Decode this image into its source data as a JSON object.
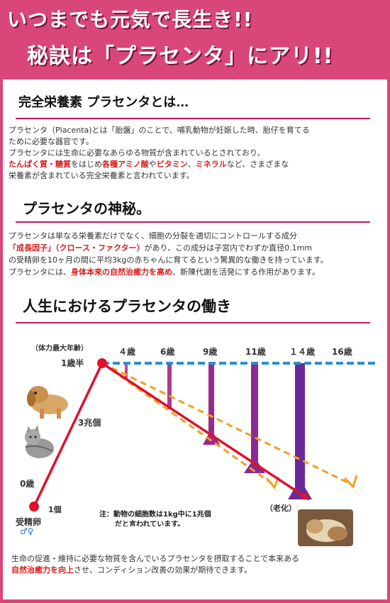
{
  "header": {
    "line1": "いつまでも元気で長生き!!",
    "line2": "秘訣は「プラセンタ」にアリ!!"
  },
  "section1": {
    "title": "完全栄養素 プラセンタとは…",
    "p1_line1": "プラセンタ（Placenta)とは「胎盤」のことで、哺乳動物が妊娠した時、胎仔を育てる",
    "p1_line2": "ために必要な器官です。",
    "p2_line1": "プラセンタには生命に必要なあらゆる物質が含まれているとされており、",
    "p2_hl1": "たんぱく質・糖質",
    "p2_t1": "をはじめ",
    "p2_hl2": "各種アミノ酸",
    "p2_t2": "や",
    "p2_hl3": "ビタミン",
    "p2_t3": "、",
    "p2_hl4": "ミネラル",
    "p2_t4": "など、さまざまな",
    "p2_line4": "栄養素が含まれている完全栄養素と言われています。"
  },
  "section2": {
    "title": "プラセンタの神秘。",
    "line1": "プラセンタは単なる栄養素だけでなく、細胞の分裂を適切にコントロールする成分",
    "hl1": "「成長因子」",
    "hl2": "（クロース・ファクター）",
    "line2_rest": "があり、この成分は子宮内でわずか直径0.1mm",
    "line3": "の受精卵を10ヶ月の間に平均3kgの赤ちゃんに育てるという驚異的な働きを持っています。",
    "line4_a": "プラセンタには、",
    "hl3": "身体本来の自然治癒力を高め",
    "line4_b": "、新陳代謝を活発にする作用があります。"
  },
  "section3": {
    "title": "人生におけるプラセンタの働き",
    "peak_label": "（体力最大年齢）",
    "age_15": "1歳半",
    "ages": [
      "４歳",
      "6歳",
      "9歳",
      "11歳",
      "１４歳",
      "16歳"
    ],
    "cells_3t": "3兆個",
    "age_0": "0歳",
    "cells_1": "1個",
    "egg_label": "受精卵",
    "egg_symbol": "♂♀",
    "aging": "（老化）",
    "note_line1": "注：動物の細胞数は1kg中に1兆個",
    "note_line2": "だと言われています。"
  },
  "footer": {
    "line1": "生命の促進・維持に必要な物質を含んでいるプラセンタを摂取することで本来ある",
    "hl": "自然治癒力を向上",
    "line2_rest": "させ、コンディション改善の効果が期待できます。"
  },
  "colors": {
    "header_bg": "#d9477a",
    "accent": "#c2185b",
    "highlight_red": "#d81b1b",
    "dash_blue": "#2a8fd0",
    "dash_orange": "#f0a020",
    "curve_red": "#e0102a",
    "bar_purple": "#7a2a9a"
  }
}
